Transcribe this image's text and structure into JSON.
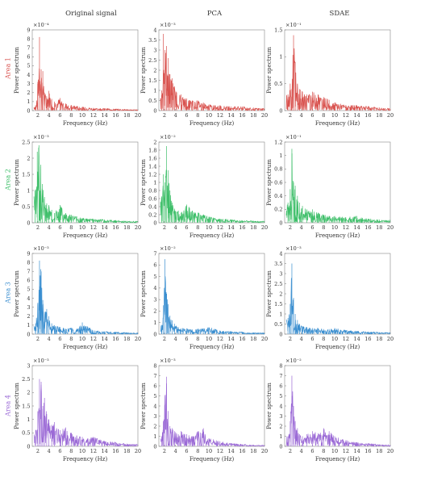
{
  "columns": [
    "Original signal",
    "PCA",
    "SDAE"
  ],
  "rows": [
    {
      "label": "Area 1",
      "color": "#d9534f"
    },
    {
      "label": "Area 2",
      "color": "#3fbf6a"
    },
    {
      "label": "Area 3",
      "color": "#3b8fd0"
    },
    {
      "label": "Area 4",
      "color": "#9b6ad6"
    }
  ],
  "common": {
    "xlabel": "Frequency (Hz)",
    "ylabel": "Power spectrum",
    "xlim": [
      1,
      20
    ],
    "xticks": [
      "2",
      "4",
      "6",
      "8",
      "10",
      "12",
      "14",
      "16",
      "18",
      "20"
    ]
  },
  "chart_data": [
    {
      "type": "line",
      "row": "Area 1",
      "column": "Original signal",
      "exponent": "×10⁻⁴",
      "ylim": [
        0,
        9
      ],
      "yticks": [
        "0",
        "1",
        "2",
        "3",
        "4",
        "5",
        "6",
        "7",
        "8",
        "9"
      ],
      "peaks": [
        [
          1.6,
          0.6
        ],
        [
          2.0,
          3.2
        ],
        [
          2.3,
          8.2
        ],
        [
          2.6,
          4.6
        ],
        [
          2.9,
          4.4
        ],
        [
          3.2,
          2.0
        ],
        [
          3.6,
          1.6
        ],
        [
          4.0,
          2.2
        ],
        [
          4.5,
          1.3
        ],
        [
          5.0,
          1.0
        ],
        [
          6.0,
          1.4
        ],
        [
          7.0,
          0.8
        ],
        [
          8.0,
          0.6
        ],
        [
          9.0,
          0.5
        ],
        [
          10.0,
          0.4
        ],
        [
          12.0,
          0.3
        ],
        [
          14.0,
          0.25
        ],
        [
          16.0,
          0.2
        ],
        [
          18.0,
          0.15
        ]
      ]
    },
    {
      "type": "line",
      "row": "Area 1",
      "column": "PCA",
      "exponent": "×10⁻³",
      "ylim": [
        0,
        4
      ],
      "yticks": [
        "0",
        "0.5",
        "1",
        "1.5",
        "2",
        "2.5",
        "3",
        "3.5",
        "4"
      ],
      "peaks": [
        [
          1.5,
          1.0
        ],
        [
          1.8,
          3.8
        ],
        [
          2.1,
          3.0
        ],
        [
          2.4,
          3.2
        ],
        [
          2.7,
          2.6
        ],
        [
          3.0,
          1.8
        ],
        [
          3.4,
          1.6
        ],
        [
          3.8,
          1.2
        ],
        [
          4.2,
          0.9
        ],
        [
          5.0,
          0.8
        ],
        [
          6.0,
          0.6
        ],
        [
          7.0,
          0.5
        ],
        [
          8.0,
          0.5
        ],
        [
          9.0,
          0.4
        ],
        [
          10.0,
          0.3
        ],
        [
          12.0,
          0.25
        ],
        [
          14.0,
          0.2
        ],
        [
          16.0,
          0.2
        ],
        [
          18.0,
          0.15
        ]
      ]
    },
    {
      "type": "line",
      "row": "Area 1",
      "column": "SDAE",
      "exponent": "×10⁻¹",
      "ylim": [
        0,
        1.5
      ],
      "yticks": [
        "0",
        "0.5",
        "1",
        "1.5"
      ],
      "peaks": [
        [
          1.6,
          0.3
        ],
        [
          2.0,
          0.5
        ],
        [
          2.3,
          0.4
        ],
        [
          2.6,
          1.4
        ],
        [
          2.9,
          0.9
        ],
        [
          3.3,
          0.5
        ],
        [
          3.7,
          0.4
        ],
        [
          4.2,
          0.35
        ],
        [
          5.0,
          0.3
        ],
        [
          6.0,
          0.35
        ],
        [
          7.0,
          0.3
        ],
        [
          8.0,
          0.25
        ],
        [
          9.0,
          0.2
        ],
        [
          10.0,
          0.15
        ],
        [
          12.0,
          0.1
        ],
        [
          14.0,
          0.1
        ],
        [
          16.0,
          0.08
        ],
        [
          18.0,
          0.06
        ]
      ]
    },
    {
      "type": "line",
      "row": "Area 2",
      "column": "Original signal",
      "exponent": "×10⁻³",
      "ylim": [
        0,
        2.5
      ],
      "yticks": [
        "0",
        "0.5",
        "1",
        "1.5",
        "2",
        "2.5"
      ],
      "peaks": [
        [
          1.5,
          1.0
        ],
        [
          1.9,
          2.2
        ],
        [
          2.2,
          2.4
        ],
        [
          2.5,
          1.8
        ],
        [
          2.8,
          1.2
        ],
        [
          3.2,
          0.8
        ],
        [
          3.6,
          0.6
        ],
        [
          4.0,
          0.55
        ],
        [
          4.5,
          0.4
        ],
        [
          5.0,
          0.3
        ],
        [
          6.0,
          0.55
        ],
        [
          7.0,
          0.3
        ],
        [
          8.0,
          0.25
        ],
        [
          9.0,
          0.2
        ],
        [
          10.0,
          0.15
        ],
        [
          12.0,
          0.12
        ],
        [
          14.0,
          0.1
        ],
        [
          16.0,
          0.08
        ],
        [
          18.0,
          0.06
        ]
      ]
    },
    {
      "type": "line",
      "row": "Area 2",
      "column": "PCA",
      "exponent": "×10⁻²",
      "ylim": [
        0,
        2
      ],
      "yticks": [
        "0",
        "0.2",
        "0.4",
        "0.6",
        "0.8",
        "1",
        "1.2",
        "1.4",
        "1.6",
        "1.8",
        "2"
      ],
      "peaks": [
        [
          1.5,
          0.6
        ],
        [
          1.8,
          1.2
        ],
        [
          2.1,
          1.0
        ],
        [
          2.4,
          1.9
        ],
        [
          2.7,
          1.3
        ],
        [
          3.0,
          0.8
        ],
        [
          3.4,
          0.5
        ],
        [
          3.8,
          0.35
        ],
        [
          4.5,
          0.3
        ],
        [
          5.0,
          0.25
        ],
        [
          6.0,
          0.45
        ],
        [
          7.0,
          0.3
        ],
        [
          8.0,
          0.25
        ],
        [
          9.0,
          0.2
        ],
        [
          10.0,
          0.15
        ],
        [
          12.0,
          0.1
        ],
        [
          14.0,
          0.08
        ],
        [
          16.0,
          0.06
        ],
        [
          18.0,
          0.05
        ]
      ]
    },
    {
      "type": "line",
      "row": "Area 2",
      "column": "SDAE",
      "exponent": "×10⁻¹",
      "ylim": [
        0,
        1.2
      ],
      "yticks": [
        "0",
        "0.2",
        "0.4",
        "0.6",
        "0.8",
        "1",
        "1.2"
      ],
      "peaks": [
        [
          1.6,
          0.3
        ],
        [
          2.0,
          0.5
        ],
        [
          2.3,
          1.1
        ],
        [
          2.6,
          0.6
        ],
        [
          2.9,
          0.55
        ],
        [
          3.3,
          0.4
        ],
        [
          3.7,
          0.3
        ],
        [
          4.2,
          0.25
        ],
        [
          5.0,
          0.2
        ],
        [
          6.0,
          0.2
        ],
        [
          7.0,
          0.15
        ],
        [
          8.0,
          0.12
        ],
        [
          9.0,
          0.1
        ],
        [
          10.0,
          0.1
        ],
        [
          12.0,
          0.08
        ],
        [
          14.0,
          0.1
        ],
        [
          16.0,
          0.06
        ],
        [
          18.0,
          0.05
        ]
      ]
    },
    {
      "type": "line",
      "row": "Area 3",
      "column": "Original signal",
      "exponent": "×10⁻³",
      "ylim": [
        0,
        9
      ],
      "yticks": [
        "0",
        "1",
        "2",
        "3",
        "4",
        "5",
        "6",
        "7",
        "8",
        "9"
      ],
      "peaks": [
        [
          1.6,
          1.2
        ],
        [
          2.0,
          3.5
        ],
        [
          2.3,
          8.2
        ],
        [
          2.6,
          7.0
        ],
        [
          2.9,
          3.8
        ],
        [
          3.2,
          2.5
        ],
        [
          3.6,
          2.8
        ],
        [
          4.0,
          2.0
        ],
        [
          4.5,
          1.2
        ],
        [
          5.0,
          1.0
        ],
        [
          6.0,
          0.8
        ],
        [
          7.0,
          0.6
        ],
        [
          8.0,
          0.7
        ],
        [
          9.0,
          0.6
        ],
        [
          10.0,
          1.3
        ],
        [
          12.0,
          0.4
        ],
        [
          14.0,
          0.3
        ],
        [
          16.0,
          0.25
        ],
        [
          18.0,
          0.2
        ]
      ]
    },
    {
      "type": "line",
      "row": "Area 3",
      "column": "PCA",
      "exponent": "×10⁻²",
      "ylim": [
        0,
        7
      ],
      "yticks": [
        "0",
        "1",
        "2",
        "3",
        "4",
        "5",
        "6",
        "7"
      ],
      "peaks": [
        [
          1.5,
          0.8
        ],
        [
          1.8,
          2.5
        ],
        [
          2.1,
          6.5
        ],
        [
          2.4,
          3.5
        ],
        [
          2.7,
          2.6
        ],
        [
          3.0,
          1.6
        ],
        [
          3.4,
          1.2
        ],
        [
          3.8,
          0.9
        ],
        [
          4.5,
          0.6
        ],
        [
          5.0,
          0.5
        ],
        [
          6.0,
          0.5
        ],
        [
          7.0,
          0.4
        ],
        [
          8.0,
          0.45
        ],
        [
          9.0,
          0.5
        ],
        [
          10.0,
          0.6
        ],
        [
          12.0,
          0.3
        ],
        [
          14.0,
          0.25
        ],
        [
          16.0,
          0.2
        ],
        [
          18.0,
          0.15
        ]
      ]
    },
    {
      "type": "line",
      "row": "Area 3",
      "column": "SDAE",
      "exponent": "×10⁻³",
      "ylim": [
        0,
        4
      ],
      "yticks": [
        "0",
        "0.5",
        "1",
        "1.5",
        "2",
        "2.5",
        "3",
        "3.5",
        "4"
      ],
      "peaks": [
        [
          1.6,
          0.8
        ],
        [
          2.0,
          1.5
        ],
        [
          2.3,
          3.5
        ],
        [
          2.6,
          1.8
        ],
        [
          2.9,
          1.0
        ],
        [
          3.3,
          0.7
        ],
        [
          3.7,
          0.5
        ],
        [
          4.2,
          0.4
        ],
        [
          5.0,
          0.35
        ],
        [
          6.0,
          0.3
        ],
        [
          7.0,
          0.3
        ],
        [
          8.0,
          0.25
        ],
        [
          9.0,
          0.25
        ],
        [
          10.0,
          0.3
        ],
        [
          12.0,
          0.2
        ],
        [
          14.0,
          0.15
        ],
        [
          16.0,
          0.12
        ],
        [
          18.0,
          0.1
        ]
      ]
    },
    {
      "type": "line",
      "row": "Area 4",
      "column": "Original signal",
      "exponent": "×10⁻³",
      "ylim": [
        0,
        3
      ],
      "yticks": [
        "0",
        "0.5",
        "1",
        "1.5",
        "2",
        "2.5",
        "3"
      ],
      "peaks": [
        [
          1.6,
          0.6
        ],
        [
          2.0,
          1.3
        ],
        [
          2.3,
          2.5
        ],
        [
          2.6,
          2.4
        ],
        [
          2.9,
          1.5
        ],
        [
          3.2,
          1.8
        ],
        [
          3.6,
          1.2
        ],
        [
          4.0,
          1.0
        ],
        [
          4.5,
          0.8
        ],
        [
          5.0,
          0.9
        ],
        [
          6.0,
          0.6
        ],
        [
          7.0,
          0.7
        ],
        [
          8.0,
          0.5
        ],
        [
          9.0,
          0.4
        ],
        [
          10.0,
          0.35
        ],
        [
          11.0,
          0.3
        ],
        [
          12.0,
          0.35
        ],
        [
          14.0,
          0.2
        ],
        [
          16.0,
          0.15
        ],
        [
          18.0,
          0.1
        ]
      ]
    },
    {
      "type": "line",
      "row": "Area 4",
      "column": "PCA",
      "exponent": "×10⁻³",
      "ylim": [
        0,
        8
      ],
      "yticks": [
        "0",
        "1",
        "2",
        "3",
        "4",
        "5",
        "6",
        "7",
        "8"
      ],
      "peaks": [
        [
          1.5,
          1.0
        ],
        [
          1.8,
          2.5
        ],
        [
          2.1,
          5.0
        ],
        [
          2.4,
          6.9
        ],
        [
          2.7,
          3.5
        ],
        [
          3.0,
          2.0
        ],
        [
          3.4,
          1.8
        ],
        [
          3.8,
          1.5
        ],
        [
          4.5,
          1.2
        ],
        [
          5.0,
          1.5
        ],
        [
          6.0,
          1.2
        ],
        [
          7.0,
          1.0
        ],
        [
          8.0,
          1.5
        ],
        [
          9.0,
          1.8
        ],
        [
          10.0,
          0.8
        ],
        [
          12.0,
          0.5
        ],
        [
          14.0,
          0.3
        ],
        [
          16.0,
          0.2
        ],
        [
          18.0,
          0.15
        ]
      ]
    },
    {
      "type": "line",
      "row": "Area 4",
      "column": "SDAE",
      "exponent": "×10⁻²",
      "ylim": [
        0,
        8
      ],
      "yticks": [
        "0",
        "1",
        "2",
        "3",
        "4",
        "5",
        "6",
        "7",
        "8"
      ],
      "peaks": [
        [
          1.6,
          1.0
        ],
        [
          2.0,
          2.5
        ],
        [
          2.3,
          7.0
        ],
        [
          2.6,
          4.0
        ],
        [
          2.9,
          2.5
        ],
        [
          3.3,
          1.8
        ],
        [
          3.7,
          1.2
        ],
        [
          4.2,
          1.0
        ],
        [
          5.0,
          1.2
        ],
        [
          6.0,
          1.5
        ],
        [
          7.0,
          1.3
        ],
        [
          8.0,
          1.8
        ],
        [
          9.0,
          1.5
        ],
        [
          10.0,
          1.0
        ],
        [
          12.0,
          0.6
        ],
        [
          14.0,
          0.4
        ],
        [
          16.0,
          0.3
        ],
        [
          18.0,
          0.2
        ]
      ]
    }
  ]
}
